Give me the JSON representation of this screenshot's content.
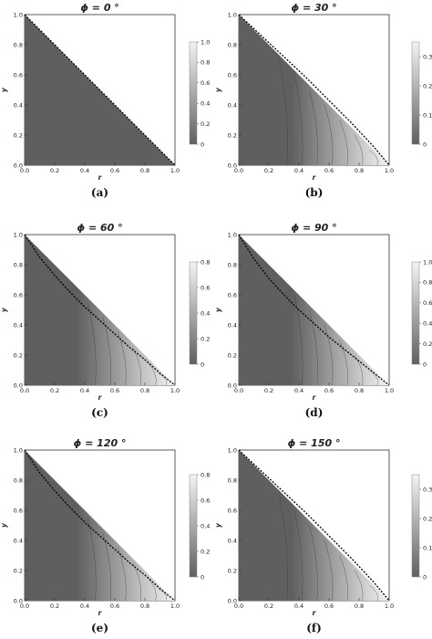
{
  "chart_data": [
    {
      "type": "heatmap",
      "title": "ϕ = 0 °",
      "caption": "(a)",
      "xlabel": "r",
      "ylabel": "y",
      "x_ticks": [
        "0.0",
        "0.2",
        "0.4",
        "0.6",
        "0.8",
        "1.0"
      ],
      "y_ticks": [
        "0.0",
        "0.2",
        "0.4",
        "0.6",
        "0.8",
        "1.0"
      ],
      "xlim": [
        0,
        1
      ],
      "ylim": [
        0,
        1
      ],
      "colorbar": {
        "min": 0,
        "max": 1.0,
        "ticks": [
          "0",
          "0.2",
          "0.4",
          "0.6",
          "0.8",
          "1.0"
        ]
      },
      "boundary": {
        "x": [
          0.0,
          1.0
        ],
        "y": [
          1.0,
          0.0
        ]
      },
      "contour_levels": []
    },
    {
      "type": "heatmap",
      "title": "ϕ = 30 °",
      "caption": "(b)",
      "xlabel": "r",
      "ylabel": "y",
      "x_ticks": [
        "0.0",
        "0.2",
        "0.4",
        "0.6",
        "0.8",
        "1.0"
      ],
      "y_ticks": [
        "0.0",
        "0.2",
        "0.4",
        "0.6",
        "0.8",
        "1.0"
      ],
      "xlim": [
        0,
        1
      ],
      "ylim": [
        0,
        1
      ],
      "colorbar": {
        "min": 0,
        "max": 0.35,
        "ticks": [
          "0",
          "0.1",
          "0.2",
          "0.3"
        ]
      },
      "boundary": {
        "x": [
          0.0,
          0.15,
          0.3,
          0.45,
          0.6,
          0.75,
          0.9,
          1.0
        ],
        "y": [
          1.0,
          0.86,
          0.72,
          0.58,
          0.43,
          0.28,
          0.12,
          0.0
        ]
      },
      "contour_levels": [
        0.3,
        0.4,
        0.5,
        0.6,
        0.7,
        0.8,
        0.9
      ]
    },
    {
      "type": "heatmap",
      "title": "ϕ = 60 °",
      "caption": "(c)",
      "xlabel": "r",
      "ylabel": "y",
      "x_ticks": [
        "0.0",
        "0.2",
        "0.4",
        "0.6",
        "0.8",
        "1.0"
      ],
      "y_ticks": [
        "0.0",
        "0.2",
        "0.4",
        "0.6",
        "0.8",
        "1.0"
      ],
      "xlim": [
        0,
        1
      ],
      "ylim": [
        0,
        1
      ],
      "colorbar": {
        "min": 0,
        "max": 0.8,
        "ticks": [
          "0",
          "0.2",
          "0.4",
          "0.6",
          "0.8"
        ]
      },
      "boundary": {
        "x": [
          0.0,
          0.1,
          0.2,
          0.3,
          0.4,
          0.5,
          0.6,
          0.7,
          0.8,
          0.9,
          1.0
        ],
        "y": [
          1.0,
          0.85,
          0.73,
          0.62,
          0.52,
          0.43,
          0.34,
          0.25,
          0.17,
          0.08,
          0.0
        ]
      },
      "contour_levels": [
        0.45,
        0.55,
        0.65,
        0.75,
        0.85,
        0.92
      ]
    },
    {
      "type": "heatmap",
      "title": "ϕ = 90 °",
      "caption": "(d)",
      "xlabel": "r",
      "ylabel": "y",
      "x_ticks": [
        "0.0",
        "0.2",
        "0.4",
        "0.6",
        "0.8",
        "1.0"
      ],
      "y_ticks": [
        "0.0",
        "0.2",
        "0.4",
        "0.6",
        "0.8",
        "1.0"
      ],
      "xlim": [
        0,
        1
      ],
      "ylim": [
        0,
        1
      ],
      "colorbar": {
        "min": 0,
        "max": 1.0,
        "ticks": [
          "0",
          "0.2",
          "0.4",
          "0.6",
          "0.8",
          "1.0"
        ]
      },
      "boundary": {
        "x": [
          0.0,
          0.1,
          0.2,
          0.3,
          0.4,
          0.5,
          0.6,
          0.7,
          0.8,
          0.9,
          1.0
        ],
        "y": [
          1.0,
          0.84,
          0.71,
          0.6,
          0.5,
          0.41,
          0.32,
          0.24,
          0.16,
          0.08,
          0.0
        ]
      },
      "contour_levels": [
        0.4,
        0.5,
        0.6,
        0.7,
        0.8,
        0.9
      ]
    },
    {
      "type": "heatmap",
      "title": "ϕ = 120 °",
      "caption": "(e)",
      "xlabel": "r",
      "ylabel": "y",
      "x_ticks": [
        "0.0",
        "0.2",
        "0.4",
        "0.6",
        "0.8",
        "1.0"
      ],
      "y_ticks": [
        "0.0",
        "0.2",
        "0.4",
        "0.6",
        "0.8",
        "1.0"
      ],
      "xlim": [
        0,
        1
      ],
      "ylim": [
        0,
        1
      ],
      "colorbar": {
        "min": 0,
        "max": 0.8,
        "ticks": [
          "0",
          "0.2",
          "0.4",
          "0.6",
          "0.8"
        ]
      },
      "boundary": {
        "x": [
          0.0,
          0.1,
          0.2,
          0.3,
          0.4,
          0.5,
          0.6,
          0.7,
          0.8,
          0.9,
          1.0
        ],
        "y": [
          1.0,
          0.85,
          0.73,
          0.62,
          0.52,
          0.43,
          0.34,
          0.25,
          0.17,
          0.08,
          0.0
        ]
      },
      "contour_levels": [
        0.45,
        0.55,
        0.65,
        0.75,
        0.85,
        0.92
      ]
    },
    {
      "type": "heatmap",
      "title": "ϕ = 150 °",
      "caption": "(f)",
      "xlabel": "r",
      "ylabel": "y",
      "x_ticks": [
        "0.0",
        "0.2",
        "0.4",
        "0.6",
        "0.8",
        "1.0"
      ],
      "y_ticks": [
        "0.0",
        "0.2",
        "0.4",
        "0.6",
        "0.8",
        "1.0"
      ],
      "xlim": [
        0,
        1
      ],
      "ylim": [
        0,
        1
      ],
      "colorbar": {
        "min": 0,
        "max": 0.35,
        "ticks": [
          "0",
          "0.1",
          "0.2",
          "0.3"
        ]
      },
      "boundary": {
        "x": [
          0.0,
          0.15,
          0.3,
          0.45,
          0.6,
          0.75,
          0.9,
          1.0
        ],
        "y": [
          1.0,
          0.86,
          0.72,
          0.58,
          0.43,
          0.28,
          0.12,
          0.0
        ]
      },
      "contour_levels": [
        0.3,
        0.4,
        0.5,
        0.6,
        0.7,
        0.8,
        0.9
      ]
    }
  ],
  "colors": {
    "dark": "#5f5f5f",
    "light": "#f4f4f4",
    "contour": "#3a3a3a",
    "boundary": "#000000",
    "frame": "#333333"
  }
}
